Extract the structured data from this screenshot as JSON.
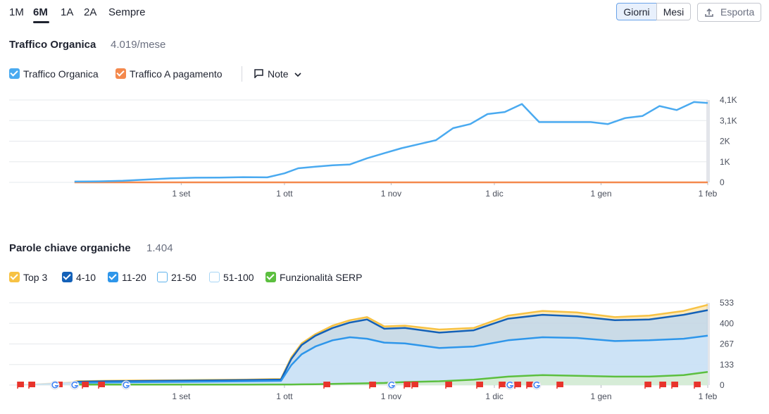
{
  "range_tabs": [
    {
      "label": "1M",
      "active": false
    },
    {
      "label": "6M",
      "active": true
    },
    {
      "label": "1A",
      "active": false
    },
    {
      "label": "2A",
      "active": false
    },
    {
      "label": "Sempre",
      "active": false
    }
  ],
  "granularity": [
    {
      "label": "Giorni",
      "active": true
    },
    {
      "label": "Mesi",
      "active": false
    }
  ],
  "export_label": "Esporta",
  "traffic": {
    "title": "Traffico Organica",
    "value": "4.019/mese",
    "legend": [
      {
        "label": "Traffico Organica",
        "color": "#4aaaf0",
        "checked": true
      },
      {
        "label": "Traffico A pagamento",
        "color": "#f4894d",
        "checked": true
      }
    ],
    "notes_label": "Note"
  },
  "keywords": {
    "title": "Parole chiave organiche",
    "value": "1.404",
    "legend": [
      {
        "label": "Top 3",
        "color": "#f7c244",
        "checked": true
      },
      {
        "label": "4-10",
        "color": "#1461b8",
        "checked": true
      },
      {
        "label": "11-20",
        "color": "#2e96ea",
        "checked": true
      },
      {
        "label": "21-50",
        "color": "#5fb3ec",
        "checked": false
      },
      {
        "label": "51-100",
        "color": "#a8d6f5",
        "checked": false
      },
      {
        "label": "Funzionalità SERP",
        "color": "#5cbf3f",
        "checked": true
      }
    ]
  },
  "chart_data": [
    {
      "type": "line",
      "title": "Traffico Organica",
      "x_ticks": [
        "1 set",
        "1 ott",
        "1 nov",
        "1 dic",
        "1 gen",
        "1 feb"
      ],
      "y_ticks": [
        "0",
        "1K",
        "2K",
        "3,1K",
        "4,1K"
      ],
      "ylim": [
        0,
        4100
      ],
      "grid": true,
      "x": [
        "2023-08-01",
        "2023-08-08",
        "2023-08-15",
        "2023-08-22",
        "2023-08-29",
        "2023-09-05",
        "2023-09-12",
        "2023-09-19",
        "2023-09-26",
        "2023-10-01",
        "2023-10-05",
        "2023-10-10",
        "2023-10-15",
        "2023-10-20",
        "2023-10-25",
        "2023-10-30",
        "2023-11-04",
        "2023-11-09",
        "2023-11-14",
        "2023-11-19",
        "2023-11-24",
        "2023-11-29",
        "2023-12-04",
        "2023-12-09",
        "2023-12-14",
        "2023-12-19",
        "2023-12-24",
        "2023-12-29",
        "2024-01-03",
        "2024-01-08",
        "2024-01-13",
        "2024-01-18",
        "2024-01-23",
        "2024-01-28",
        "2024-02-01"
      ],
      "series": [
        {
          "name": "Traffico Organica",
          "color": "#4aaaf0",
          "values": [
            40,
            50,
            80,
            140,
            200,
            230,
            240,
            260,
            250,
            450,
            700,
            780,
            850,
            890,
            1200,
            1450,
            1700,
            1900,
            2100,
            2700,
            2900,
            3400,
            3500,
            3900,
            3000,
            3000,
            3000,
            3000,
            2900,
            3200,
            3300,
            3800,
            3600,
            4000,
            3950
          ]
        },
        {
          "name": "Traffico A pagamento",
          "color": "#f4894d",
          "values": [
            0,
            0,
            0,
            0,
            0,
            0,
            0,
            0,
            0,
            0,
            0,
            0,
            0,
            0,
            0,
            0,
            0,
            0,
            0,
            0,
            0,
            0,
            0,
            0,
            0,
            0,
            0,
            0,
            0,
            0,
            0,
            0,
            0,
            0,
            0
          ]
        }
      ]
    },
    {
      "type": "area",
      "title": "Parole chiave organiche",
      "x_ticks": [
        "1 set",
        "1 ott",
        "1 nov",
        "1 dic",
        "1 gen",
        "1 feb"
      ],
      "y_ticks": [
        "0",
        "133",
        "267",
        "400",
        "533"
      ],
      "ylim": [
        0,
        533
      ],
      "grid": true,
      "x": [
        "2023-08-01",
        "2023-08-10",
        "2023-08-20",
        "2023-09-01",
        "2023-09-10",
        "2023-09-20",
        "2023-09-30",
        "2023-10-03",
        "2023-10-06",
        "2023-10-10",
        "2023-10-15",
        "2023-10-20",
        "2023-10-25",
        "2023-10-30",
        "2023-11-05",
        "2023-11-15",
        "2023-11-25",
        "2023-12-05",
        "2023-12-15",
        "2023-12-25",
        "2024-01-05",
        "2024-01-15",
        "2024-01-25",
        "2024-02-01"
      ],
      "series": [
        {
          "name": "Top 3",
          "color": "#f7c244",
          "values": [
            25,
            28,
            30,
            32,
            34,
            36,
            40,
            180,
            270,
            330,
            385,
            420,
            440,
            380,
            385,
            360,
            370,
            450,
            480,
            470,
            440,
            450,
            480,
            520
          ]
        },
        {
          "name": "4-10",
          "color": "#1461b8",
          "values": [
            22,
            25,
            27,
            29,
            31,
            33,
            36,
            170,
            260,
            320,
            370,
            405,
            425,
            365,
            370,
            340,
            355,
            430,
            455,
            445,
            420,
            425,
            455,
            485
          ]
        },
        {
          "name": "11-20",
          "color": "#2e96ea",
          "values": [
            15,
            17,
            19,
            21,
            23,
            25,
            28,
            130,
            200,
            250,
            290,
            310,
            300,
            275,
            270,
            240,
            250,
            290,
            310,
            305,
            285,
            290,
            300,
            320
          ]
        },
        {
          "name": "Funzionalità SERP",
          "color": "#5cbf3f",
          "values": [
            3,
            3,
            3,
            3,
            3,
            3,
            4,
            4,
            5,
            6,
            8,
            10,
            12,
            14,
            20,
            25,
            35,
            55,
            65,
            60,
            55,
            55,
            65,
            85
          ]
        }
      ],
      "markers": {
        "flag_color": "#e8342c",
        "google_icon": "google-g-icon"
      }
    }
  ]
}
